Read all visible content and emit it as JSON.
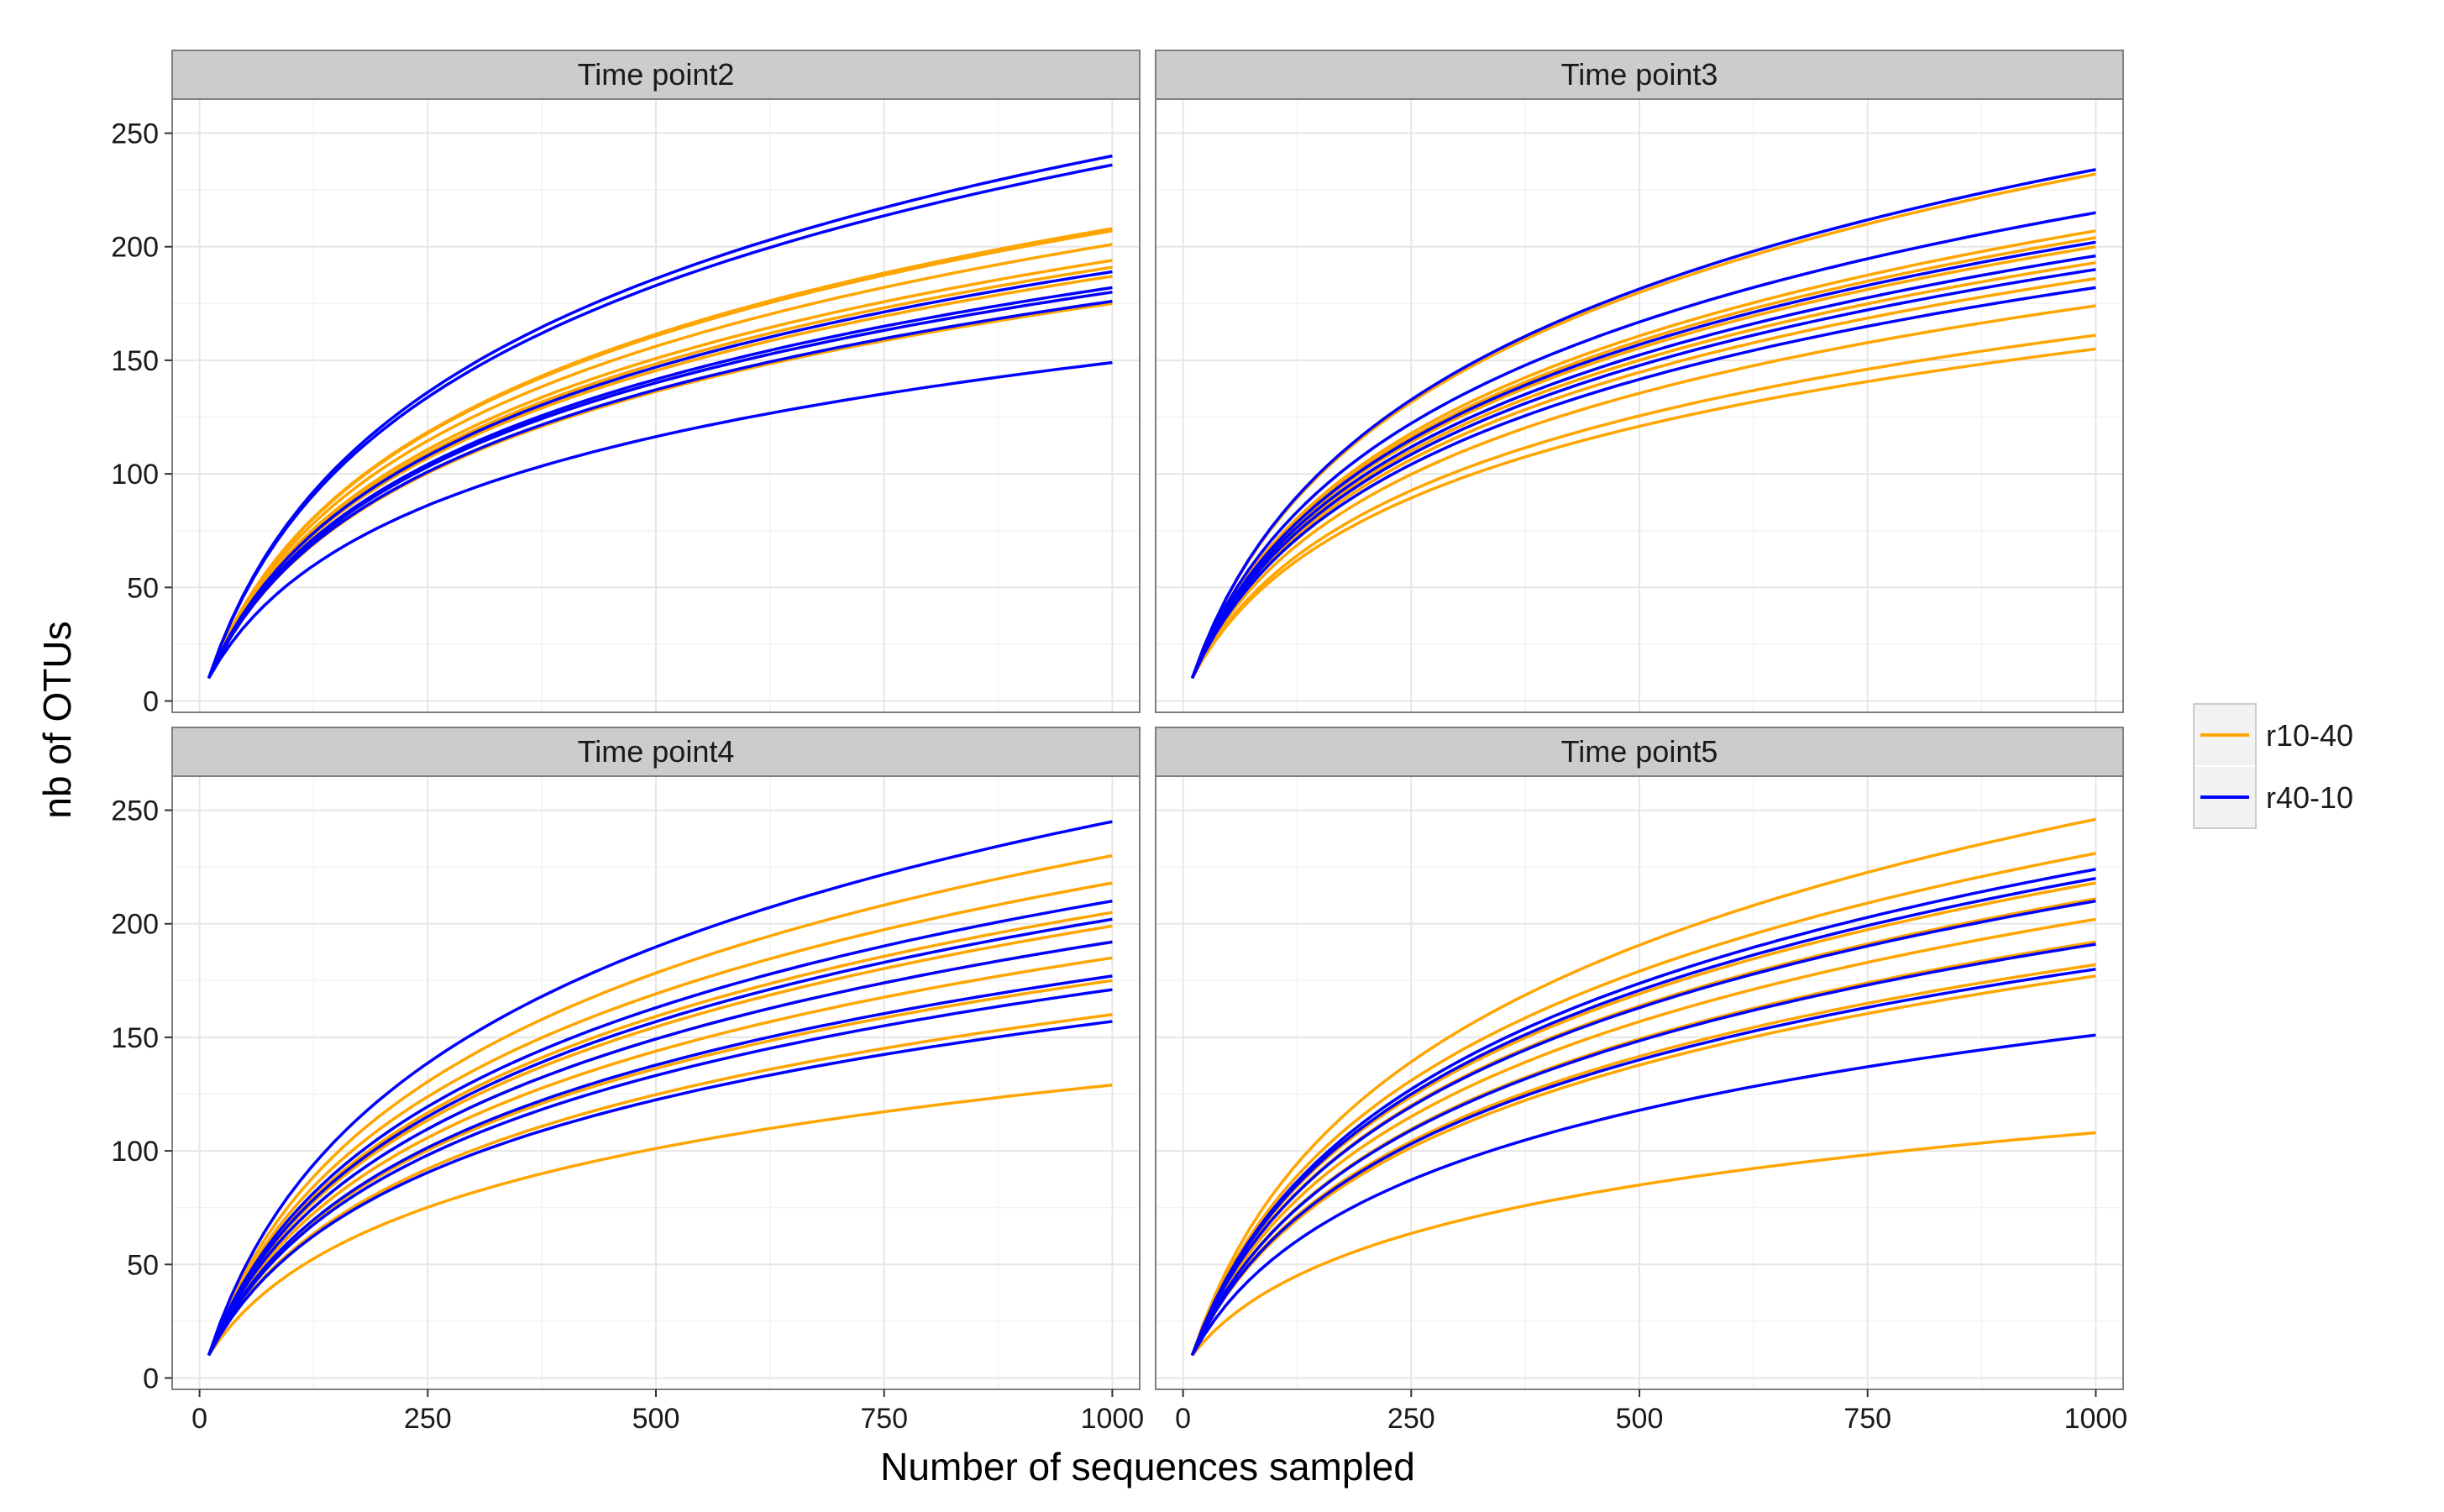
{
  "chart_data": {
    "type": "line",
    "title": "",
    "xlabel": "Number of sequences sampled",
    "ylabel": "nb of OTUs",
    "xlim": [
      -30,
      1030
    ],
    "ylim": [
      -5,
      265
    ],
    "x_ticks": [
      "0",
      "250",
      "500",
      "750",
      "1000"
    ],
    "x_tick_values": [
      0,
      250,
      500,
      750,
      1000
    ],
    "y_ticks": [
      "0",
      "50",
      "100",
      "150",
      "200",
      "250"
    ],
    "y_tick_values": [
      0,
      50,
      100,
      150,
      200,
      250
    ],
    "grid": true,
    "legend": {
      "position": "right",
      "entries": [
        {
          "label": "r10-40",
          "color": "#FFA500"
        },
        {
          "label": "r40-10",
          "color": "#0000FF"
        }
      ]
    },
    "series_x": [
      10,
      1000
    ],
    "facets": [
      {
        "title": "Time point2",
        "series": [
          {
            "group": "r10-40",
            "end": 208
          },
          {
            "group": "r10-40",
            "end": 207
          },
          {
            "group": "r10-40",
            "end": 201
          },
          {
            "group": "r10-40",
            "end": 194
          },
          {
            "group": "r10-40",
            "end": 191
          },
          {
            "group": "r10-40",
            "end": 187
          },
          {
            "group": "r10-40",
            "end": 180
          },
          {
            "group": "r10-40",
            "end": 175
          },
          {
            "group": "r40-10",
            "end": 240
          },
          {
            "group": "r40-10",
            "end": 236
          },
          {
            "group": "r40-10",
            "end": 189
          },
          {
            "group": "r40-10",
            "end": 182
          },
          {
            "group": "r40-10",
            "end": 180
          },
          {
            "group": "r40-10",
            "end": 176
          },
          {
            "group": "r40-10",
            "end": 149
          }
        ]
      },
      {
        "title": "Time point3",
        "series": [
          {
            "group": "r10-40",
            "end": 232
          },
          {
            "group": "r10-40",
            "end": 207
          },
          {
            "group": "r10-40",
            "end": 204
          },
          {
            "group": "r10-40",
            "end": 200
          },
          {
            "group": "r10-40",
            "end": 193
          },
          {
            "group": "r10-40",
            "end": 186
          },
          {
            "group": "r10-40",
            "end": 174
          },
          {
            "group": "r10-40",
            "end": 161
          },
          {
            "group": "r10-40",
            "end": 155
          },
          {
            "group": "r40-10",
            "end": 234
          },
          {
            "group": "r40-10",
            "end": 215
          },
          {
            "group": "r40-10",
            "end": 202
          },
          {
            "group": "r40-10",
            "end": 196
          },
          {
            "group": "r40-10",
            "end": 190
          },
          {
            "group": "r40-10",
            "end": 182
          }
        ]
      },
      {
        "title": "Time point4",
        "series": [
          {
            "group": "r10-40",
            "end": 230
          },
          {
            "group": "r10-40",
            "end": 218
          },
          {
            "group": "r10-40",
            "end": 205
          },
          {
            "group": "r10-40",
            "end": 199
          },
          {
            "group": "r10-40",
            "end": 192
          },
          {
            "group": "r10-40",
            "end": 185
          },
          {
            "group": "r10-40",
            "end": 175
          },
          {
            "group": "r10-40",
            "end": 160
          },
          {
            "group": "r10-40",
            "end": 129
          },
          {
            "group": "r40-10",
            "end": 245
          },
          {
            "group": "r40-10",
            "end": 210
          },
          {
            "group": "r40-10",
            "end": 202
          },
          {
            "group": "r40-10",
            "end": 192
          },
          {
            "group": "r40-10",
            "end": 177
          },
          {
            "group": "r40-10",
            "end": 171
          },
          {
            "group": "r40-10",
            "end": 157
          }
        ]
      },
      {
        "title": "Time point5",
        "series": [
          {
            "group": "r10-40",
            "end": 246
          },
          {
            "group": "r10-40",
            "end": 231
          },
          {
            "group": "r10-40",
            "end": 218
          },
          {
            "group": "r10-40",
            "end": 211
          },
          {
            "group": "r10-40",
            "end": 202
          },
          {
            "group": "r10-40",
            "end": 192
          },
          {
            "group": "r10-40",
            "end": 182
          },
          {
            "group": "r10-40",
            "end": 177
          },
          {
            "group": "r10-40",
            "end": 108
          },
          {
            "group": "r40-10",
            "end": 224
          },
          {
            "group": "r40-10",
            "end": 220
          },
          {
            "group": "r40-10",
            "end": 210
          },
          {
            "group": "r40-10",
            "end": 191
          },
          {
            "group": "r40-10",
            "end": 180
          },
          {
            "group": "r40-10",
            "end": 151
          }
        ]
      }
    ]
  }
}
